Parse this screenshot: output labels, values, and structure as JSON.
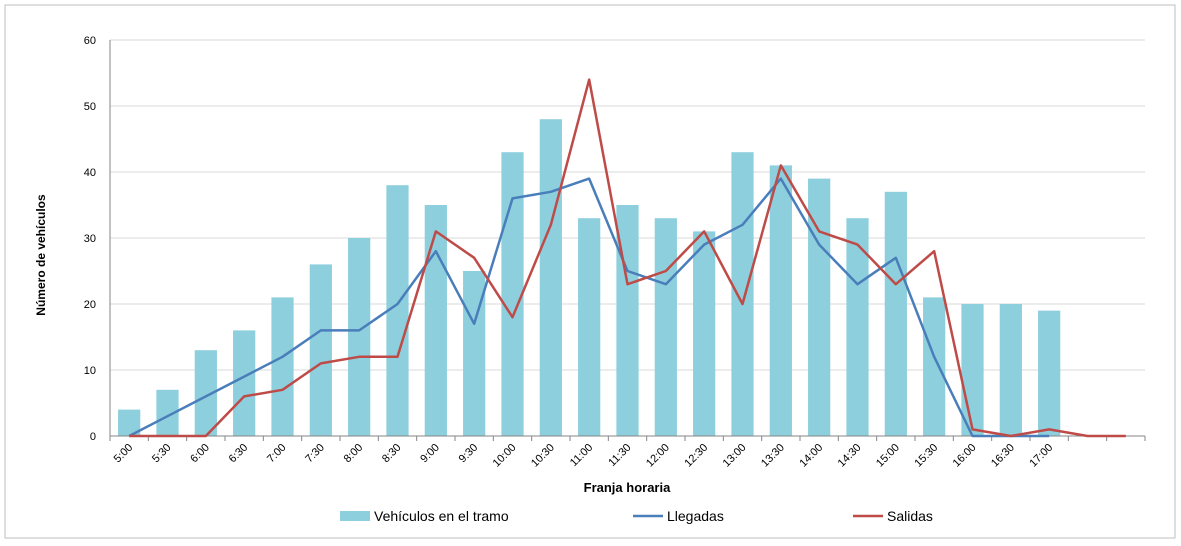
{
  "chart_data": {
    "type": "bar_line",
    "x_label": "Franja horaria",
    "y_label": "Número de vehículos",
    "categories": [
      "5:00",
      "5:30",
      "6:00",
      "6:30",
      "7:00",
      "7:30",
      "8:00",
      "8:30",
      "9:00",
      "9:30",
      "10:00",
      "10:30",
      "11:00",
      "11:30",
      "12:00",
      "12:30",
      "13:00",
      "13:30",
      "14:00",
      "14:30",
      "15:00",
      "15:30",
      "16:00",
      "16:30",
      "17:00",
      null,
      null
    ],
    "series": [
      {
        "name": "Vehículos en el tramo",
        "type": "bar",
        "color": "#8ecfdd",
        "values": [
          4,
          7,
          13,
          16,
          21,
          26,
          30,
          38,
          35,
          25,
          43,
          48,
          33,
          35,
          33,
          31,
          43,
          41,
          39,
          33,
          37,
          21,
          20,
          20,
          19,
          null,
          null
        ]
      },
      {
        "name": "Llegadas",
        "type": "line",
        "color": "#4a7ebb",
        "values": [
          0,
          3,
          6,
          9,
          12,
          16,
          16,
          20,
          28,
          17,
          36,
          37,
          39,
          25,
          23,
          29,
          32,
          39,
          29,
          23,
          27,
          12,
          0,
          0,
          0,
          null,
          null
        ]
      },
      {
        "name": "Salidas",
        "type": "line",
        "color": "#be4b48",
        "values": [
          0,
          0,
          0,
          6,
          7,
          11,
          12,
          12,
          31,
          27,
          18,
          32,
          54,
          23,
          25,
          31,
          20,
          41,
          31,
          29,
          23,
          28,
          1,
          0,
          1,
          0,
          0
        ]
      }
    ],
    "ylim": [
      0,
      60
    ],
    "yticks": [
      0,
      10,
      20,
      30,
      40,
      50,
      60
    ],
    "grid": true,
    "legend": "bottom"
  }
}
